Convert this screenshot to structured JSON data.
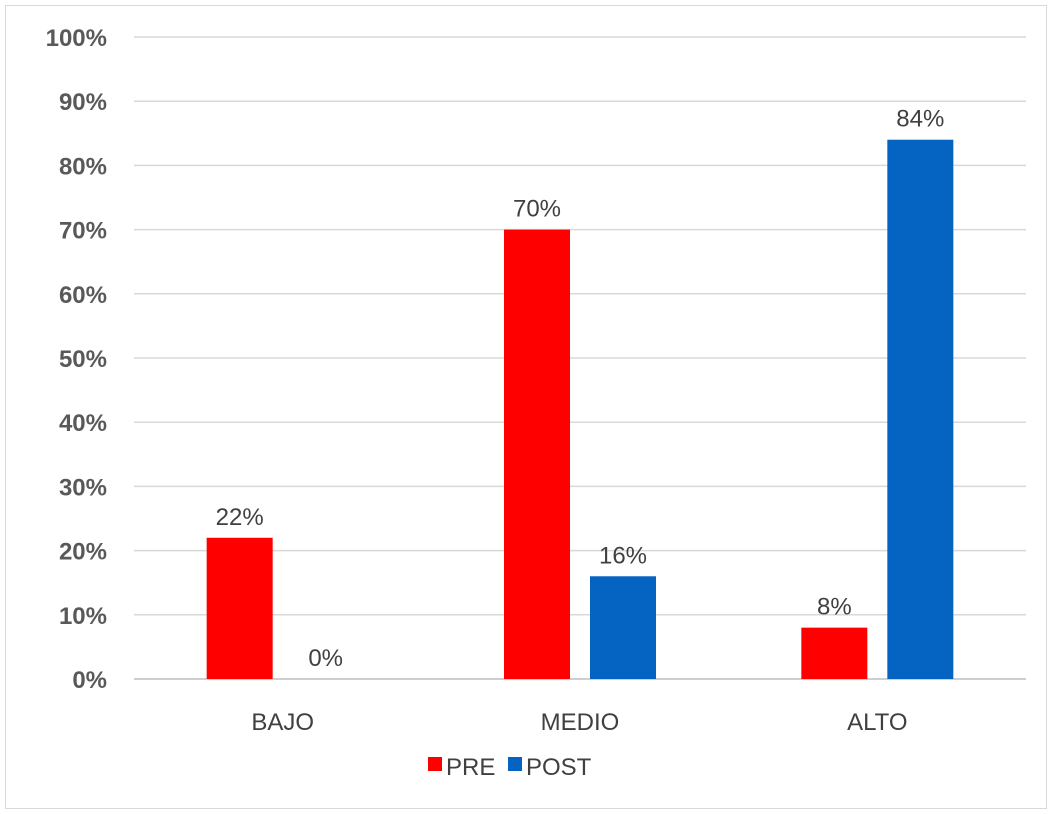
{
  "chart_data": {
    "type": "bar",
    "categories": [
      "BAJO",
      "MEDIO",
      "ALTO"
    ],
    "series": [
      {
        "name": "PRE",
        "color": "#ff0000",
        "values": [
          22,
          70,
          8
        ],
        "labels": [
          "22%",
          "70%",
          "8%"
        ]
      },
      {
        "name": "POST",
        "color": "#0563c1",
        "values": [
          0,
          16,
          84
        ],
        "labels": [
          "0%",
          "16%",
          "84%"
        ]
      }
    ],
    "ylim": [
      0,
      100
    ],
    "yticks": [
      "0%",
      "10%",
      "20%",
      "30%",
      "40%",
      "50%",
      "60%",
      "70%",
      "80%",
      "90%",
      "100%"
    ],
    "xlabel": "",
    "ylabel": "",
    "grid": true,
    "legend_position": "bottom"
  }
}
